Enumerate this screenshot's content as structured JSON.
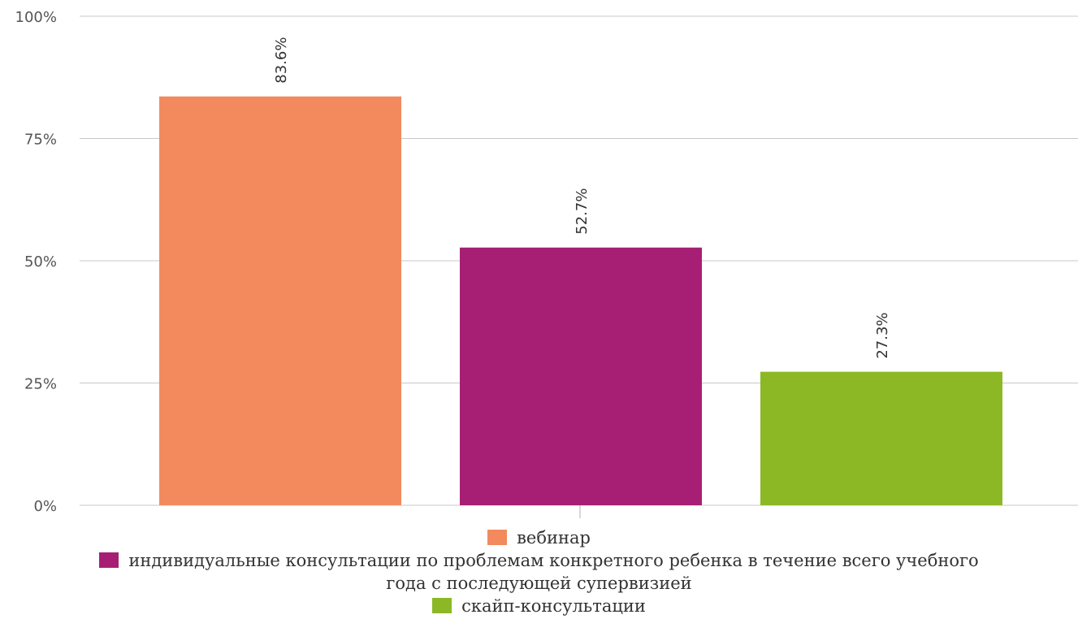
{
  "chart_data": {
    "type": "bar",
    "categories": [
      "вебинар",
      "индивидуальные консультации по проблемам конкретного ребенка в течение всего учебного года с последующей супервизией",
      "скайп-консультации"
    ],
    "values": [
      83.6,
      52.7,
      27.3
    ],
    "data_labels": [
      "83.6%",
      "52.7%",
      "27.3%"
    ],
    "colors": [
      "#f28a5e",
      "#a61f74",
      "#8cb826"
    ],
    "ylim": [
      0,
      100
    ],
    "yticks": [
      0,
      25,
      50,
      75,
      100
    ],
    "ytick_labels": [
      "0%",
      "25%",
      "50%",
      "75%",
      "100%"
    ],
    "grid": true,
    "legend_position": "bottom"
  }
}
